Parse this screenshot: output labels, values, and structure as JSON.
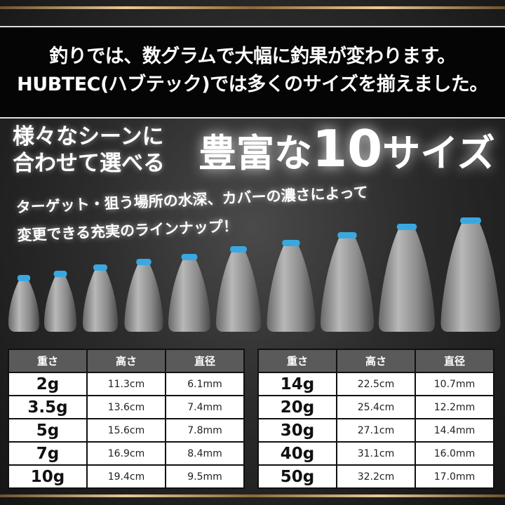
{
  "banner": {
    "line1": "釣りでは、数グラムで大幅に釣果が変わります。",
    "line2": "HUBTEC(ハブテック)では多くのサイズを揃えました。"
  },
  "tagline": {
    "line1": "様々なシーンに",
    "line2": "合わせて選べる"
  },
  "headline": {
    "pre": "豊富な",
    "num": "10",
    "post": "サイズ"
  },
  "subtitle": {
    "line1": "ターゲット・狙う場所の水深、カバーの濃さによって",
    "line2": "変更できる充実のラインナップ！"
  },
  "colors": {
    "cap": "#3aa8e0",
    "gold": "#e8c997",
    "header_bg": "#5a5a5a"
  },
  "table_headers": [
    "重さ",
    "高さ",
    "直径"
  ],
  "table_left": [
    [
      "2g",
      "11.3cm",
      "6.1mm"
    ],
    [
      "3.5g",
      "13.6cm",
      "7.4mm"
    ],
    [
      "5g",
      "15.6cm",
      "7.8mm"
    ],
    [
      "7g",
      "16.9cm",
      "8.4mm"
    ],
    [
      "10g",
      "19.4cm",
      "9.5mm"
    ]
  ],
  "table_right": [
    [
      "14g",
      "22.5cm",
      "10.7mm"
    ],
    [
      "20g",
      "25.4cm",
      "12.2mm"
    ],
    [
      "30g",
      "27.1cm",
      "14.4mm"
    ],
    [
      "40g",
      "31.1cm",
      "16.0mm"
    ],
    [
      "50g",
      "32.2cm",
      "17.0mm"
    ]
  ]
}
